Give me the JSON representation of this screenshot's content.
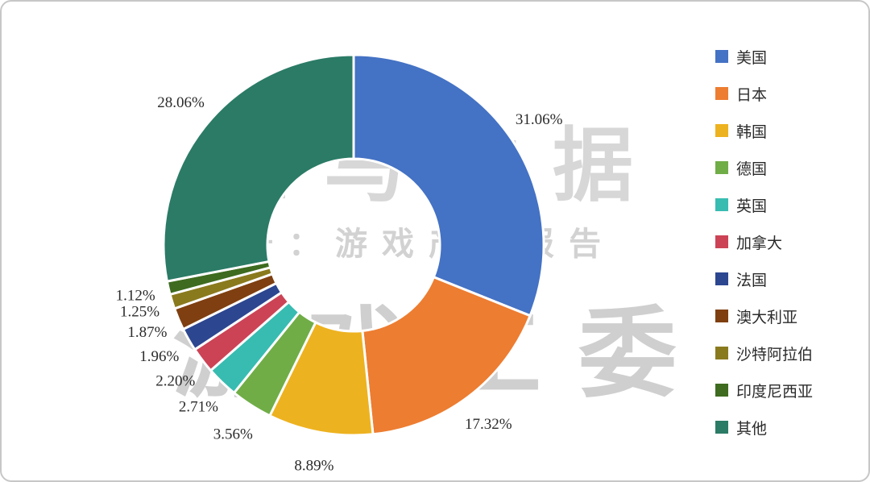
{
  "chart_data": {
    "type": "pie",
    "subtype": "donut",
    "title": "",
    "direction": "clockwise",
    "start_angle_deg": 0,
    "hole_radius_ratio": 0.45,
    "legend_position": "right",
    "categories": [
      "美国",
      "日本",
      "韩国",
      "德国",
      "英国",
      "加拿大",
      "法国",
      "澳大利亚",
      "沙特阿拉伯",
      "印度尼西亚",
      "其他"
    ],
    "values": [
      31.06,
      17.32,
      8.89,
      3.56,
      2.71,
      2.2,
      1.96,
      1.87,
      1.25,
      1.12,
      28.06
    ],
    "labels": [
      "31.06%",
      "17.32%",
      "8.89%",
      "3.56%",
      "2.71%",
      "2.20%",
      "1.96%",
      "1.87%",
      "1.25%",
      "1.12%",
      "28.06%"
    ],
    "colors": [
      "#4472C4",
      "#ED7D31",
      "#EDB21F",
      "#70AD47",
      "#38BCB1",
      "#CC4356",
      "#2C4690",
      "#7F3F10",
      "#8A7A1E",
      "#3E6B1F",
      "#2B7B66"
    ]
  },
  "watermark": {
    "line1": "伽马数据",
    "line2": "信号：游戏产业报告",
    "line3": "游戏工委"
  }
}
